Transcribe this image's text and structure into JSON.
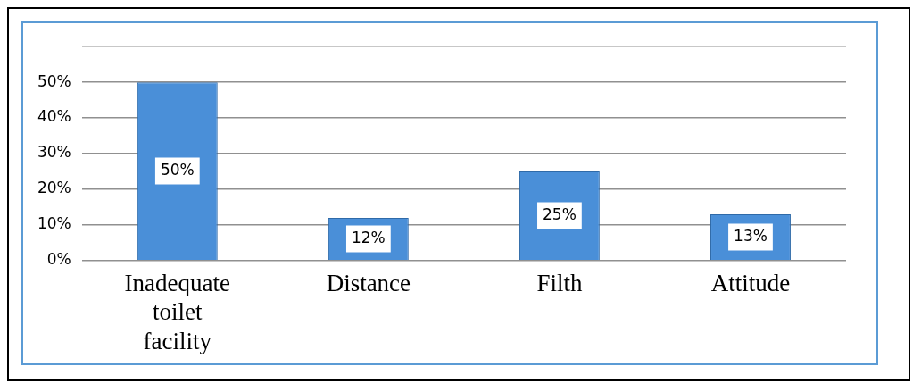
{
  "chart_data": {
    "type": "bar",
    "categories": [
      "Inadequate toilet facility",
      "Distance",
      "Filth",
      "Attitude"
    ],
    "values": [
      50,
      12,
      25,
      13
    ],
    "color": "#4a8fd8",
    "data_labels": true,
    "value_labels": [
      "50%",
      "12%",
      "25%",
      "13%"
    ],
    "ylim": [
      0,
      60
    ],
    "yticks": [
      {
        "value": 0,
        "label": "0%"
      },
      {
        "value": 10,
        "label": "10%"
      },
      {
        "value": 20,
        "label": "20%"
      },
      {
        "value": 30,
        "label": "30%"
      },
      {
        "value": 40,
        "label": "40%"
      },
      {
        "value": 50,
        "label": "50%"
      },
      {
        "value": 60,
        "label": null
      }
    ],
    "grid": "y",
    "legend": false
  }
}
